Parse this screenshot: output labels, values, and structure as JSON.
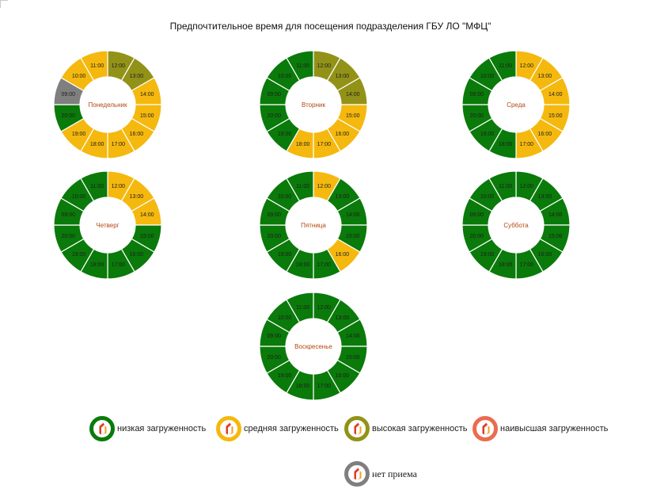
{
  "title": "Предпочтительное время для посещения подразделения ГБУ ЛО \"МФЦ\"",
  "colors": {
    "low": "#0a7a0a",
    "medium": "#f5b80e",
    "high": "#929218",
    "highest": "#ec6b50",
    "none": "#7f7f7f",
    "day_label": "#b4470f",
    "hour_label": "#1e1e1e"
  },
  "legend": [
    {
      "key": "low",
      "label": "низкая загруженность",
      "icon": "mfc-logo-icon"
    },
    {
      "key": "medium",
      "label": "средняя загруженность",
      "icon": "mfc-logo-icon"
    },
    {
      "key": "high",
      "label": "высокая загруженность",
      "icon": "mfc-logo-icon"
    },
    {
      "key": "highest",
      "label": "наивысшая загруженность",
      "icon": "mfc-logo-icon"
    },
    {
      "key": "none",
      "label": "нет приема",
      "icon": "mfc-logo-icon"
    }
  ],
  "chart_data": [
    {
      "type": "donut",
      "day": "Понедельник",
      "hours": [
        "12:00",
        "13:00",
        "14:00",
        "15:00",
        "16:00",
        "17:00",
        "18:00",
        "19:00",
        "20:00",
        "09:00",
        "10:00",
        "11:00"
      ],
      "load": [
        "high",
        "high",
        "medium",
        "medium",
        "medium",
        "medium",
        "medium",
        "medium",
        "low",
        "none",
        "medium",
        "medium"
      ]
    },
    {
      "type": "donut",
      "day": "Вторник",
      "hours": [
        "12:00",
        "13:00",
        "14:00",
        "15:00",
        "16:00",
        "17:00",
        "18:00",
        "19:00",
        "20:00",
        "09:00",
        "10:00",
        "11:00"
      ],
      "load": [
        "high",
        "high",
        "high",
        "medium",
        "medium",
        "medium",
        "medium",
        "low",
        "low",
        "low",
        "low",
        "low"
      ]
    },
    {
      "type": "donut",
      "day": "Среда",
      "hours": [
        "12:00",
        "13:00",
        "14:00",
        "15:00",
        "16:00",
        "17:00",
        "18:00",
        "19:00",
        "20:00",
        "09:00",
        "10:00",
        "11:00"
      ],
      "load": [
        "medium",
        "medium",
        "medium",
        "medium",
        "medium",
        "medium",
        "low",
        "low",
        "low",
        "low",
        "low",
        "low"
      ]
    },
    {
      "type": "donut",
      "day": "Четверг",
      "hours": [
        "12:00",
        "13:00",
        "14:00",
        "15:00",
        "16:00",
        "17:00",
        "18:00",
        "19:00",
        "20:00",
        "09:00",
        "10:00",
        "11:00"
      ],
      "load": [
        "medium",
        "medium",
        "medium",
        "low",
        "low",
        "low",
        "low",
        "low",
        "low",
        "low",
        "low",
        "low"
      ]
    },
    {
      "type": "donut",
      "day": "Пятница",
      "hours": [
        "12:00",
        "13:00",
        "14:00",
        "15:00",
        "16:00",
        "17:00",
        "18:00",
        "19:00",
        "20:00",
        "09:00",
        "10:00",
        "11:00"
      ],
      "load": [
        "medium",
        "low",
        "low",
        "low",
        "medium",
        "low",
        "low",
        "low",
        "low",
        "low",
        "low",
        "low"
      ]
    },
    {
      "type": "donut",
      "day": "Суббота",
      "hours": [
        "12:00",
        "13:00",
        "14:00",
        "15:00",
        "16:00",
        "17:00",
        "18:00",
        "19:00",
        "20:00",
        "09:00",
        "10:00",
        "11:00"
      ],
      "load": [
        "low",
        "low",
        "low",
        "low",
        "low",
        "low",
        "low",
        "low",
        "low",
        "low",
        "low",
        "low"
      ]
    },
    {
      "type": "donut",
      "day": "Воскресенье",
      "hours": [
        "12:00",
        "13:00",
        "14:00",
        "15:00",
        "16:00",
        "17:00",
        "18:00",
        "19:00",
        "20:00",
        "09:00",
        "10:00",
        "11:00"
      ],
      "load": [
        "low",
        "low",
        "low",
        "low",
        "low",
        "low",
        "low",
        "low",
        "low",
        "low",
        "low",
        "low"
      ]
    }
  ]
}
